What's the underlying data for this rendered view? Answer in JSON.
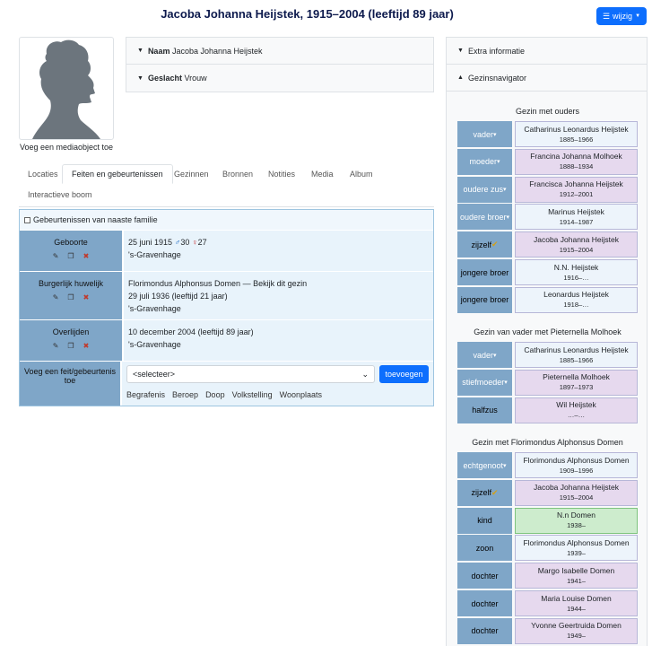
{
  "header": {
    "title": "Jacoba Johanna Heijstek, 1915–2004 (leeftijd 89 jaar)",
    "edit_label": "wijzig"
  },
  "media": {
    "add_label": "Voeg een mediaobject toe"
  },
  "summary": {
    "name_label": "Naam",
    "name_value": "Jacoba Johanna Heijstek",
    "gender_label": "Geslacht",
    "gender_value": "Vrouw"
  },
  "tabs": [
    "Locaties",
    "Feiten en gebeurtenissen",
    "Gezinnen",
    "Bronnen",
    "Notities",
    "Media",
    "Album",
    "Interactieve boom"
  ],
  "active_tab": "Feiten en gebeurtenissen",
  "facts": {
    "relatives_label": "Gebeurtenissen van naaste familie",
    "rows": [
      {
        "type": "Geboorte",
        "line1": "25 juni 1915",
        "father_age": "30",
        "mother_age": "27",
        "place": "'s-Gravenhage"
      },
      {
        "type": "Burgerlijk huwelijk",
        "line1": "Florimondus Alphonsus Domen — Bekijk dit gezin",
        "date": "29 juli 1936",
        "age": "(leeftijd 21 jaar)",
        "place": "'s-Gravenhage"
      },
      {
        "type": "Overlijden",
        "date": "10 december 2004",
        "age": "(leeftijd 89 jaar)",
        "place": "'s-Gravenhage"
      }
    ],
    "add_label": "Voeg een feit/gebeurtenis toe",
    "select_value": "<selecteer>",
    "add_button": "toevoegen",
    "suggestions": [
      "Begrafenis",
      "Beroep",
      "Doop",
      "Volkstelling",
      "Woonplaats"
    ]
  },
  "sidebar": {
    "extra_label": "Extra informatie",
    "navigator_label": "Gezinsnavigator"
  },
  "families": [
    {
      "title": "Gezin met ouders",
      "members": [
        {
          "role": "vader",
          "dropdown": true,
          "name": "Catharinus Leonardus Heijstek",
          "dates": "1885–1966",
          "kind": "male"
        },
        {
          "role": "moeder",
          "dropdown": true,
          "name": "Francina Johanna Molhoek",
          "dates": "1888–1934",
          "kind": "female"
        },
        {
          "role": "oudere zus",
          "dropdown": true,
          "name": "Francisca Johanna Heijstek",
          "dates": "1912–2001",
          "kind": "female"
        },
        {
          "role": "oudere broer",
          "dropdown": true,
          "name": "Marinus Heijstek",
          "dates": "1914–1987",
          "kind": "male"
        },
        {
          "role": "zijzelf",
          "check": true,
          "name": "Jacoba Johanna Heijstek",
          "dates": "1915–2004",
          "kind": "female"
        },
        {
          "role": "jongere broer",
          "name": "N.N. Heijstek",
          "dates": "1916–…",
          "kind": "male"
        },
        {
          "role": "jongere broer",
          "name": "Leonardus Heijstek",
          "dates": "1918–…",
          "kind": "male"
        }
      ]
    },
    {
      "title": "Gezin van vader met Pieternella Molhoek",
      "members": [
        {
          "role": "vader",
          "dropdown": true,
          "name": "Catharinus Leonardus Heijstek",
          "dates": "1885–1966",
          "kind": "male"
        },
        {
          "role": "stiefmoeder",
          "dropdown": true,
          "name": "Pieternella Molhoek",
          "dates": "1897–1973",
          "kind": "female"
        },
        {
          "role": "halfzus",
          "name": "Wil Heijstek",
          "dates": "…–…",
          "kind": "female"
        }
      ]
    },
    {
      "title": "Gezin met Florimondus Alphonsus Domen",
      "members": [
        {
          "role": "echtgenoot",
          "dropdown": true,
          "name": "Florimondus Alphonsus Domen",
          "dates": "1909–1996",
          "kind": "male"
        },
        {
          "role": "zijzelf",
          "check": true,
          "name": "Jacoba Johanna Heijstek",
          "dates": "1915–2004",
          "kind": "female"
        },
        {
          "role": "kind",
          "name": "N.n Domen",
          "dates": "1938–",
          "kind": "green"
        },
        {
          "role": "zoon",
          "name": "Florimondus Alphonsus Domen",
          "dates": "1939–",
          "kind": "male"
        },
        {
          "role": "dochter",
          "name": "Margo Isabelle Domen",
          "dates": "1941–",
          "kind": "female"
        },
        {
          "role": "dochter",
          "name": "Maria Louise Domen",
          "dates": "1944–",
          "kind": "female"
        },
        {
          "role": "dochter",
          "name": "Yvonne Geertruida Domen",
          "dates": "1949–",
          "kind": "female"
        }
      ]
    }
  ]
}
